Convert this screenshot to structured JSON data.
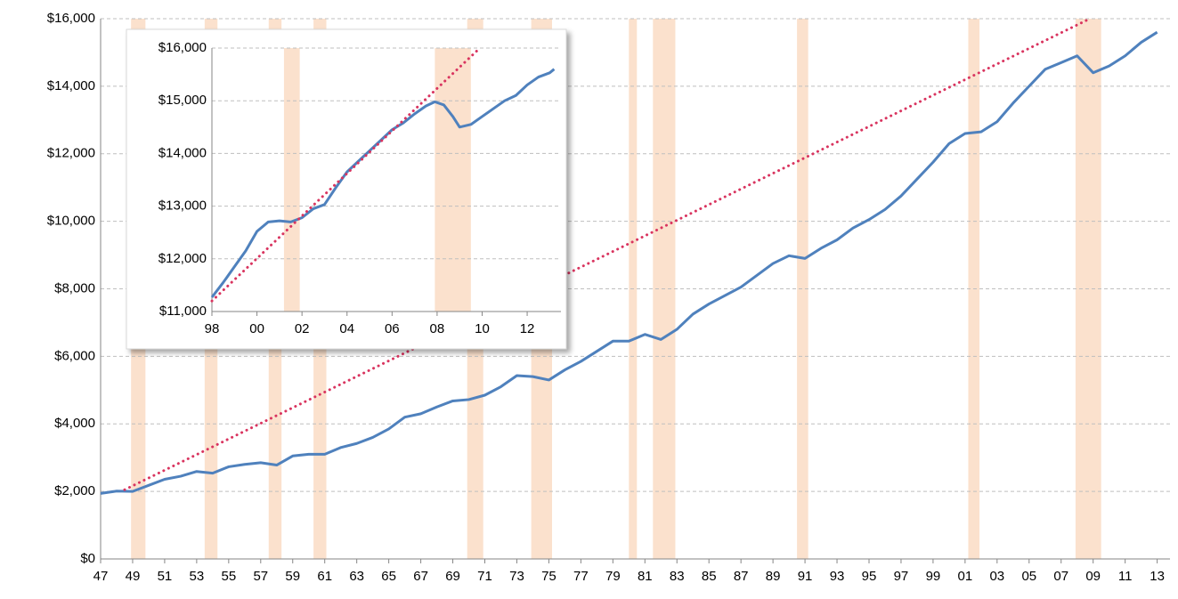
{
  "chart_data": [
    {
      "type": "line",
      "xlim": [
        1947,
        2013.8
      ],
      "ylim": [
        0,
        16000
      ],
      "xticks": [
        {
          "value": 1947,
          "label": "47"
        },
        {
          "value": 1949,
          "label": "49"
        },
        {
          "value": 1951,
          "label": "51"
        },
        {
          "value": 1953,
          "label": "53"
        },
        {
          "value": 1955,
          "label": "55"
        },
        {
          "value": 1957,
          "label": "57"
        },
        {
          "value": 1959,
          "label": "59"
        },
        {
          "value": 1961,
          "label": "61"
        },
        {
          "value": 1963,
          "label": "63"
        },
        {
          "value": 1965,
          "label": "65"
        },
        {
          "value": 1967,
          "label": "67"
        },
        {
          "value": 1969,
          "label": "69"
        },
        {
          "value": 1971,
          "label": "71"
        },
        {
          "value": 1973,
          "label": "73"
        },
        {
          "value": 1975,
          "label": "75"
        },
        {
          "value": 1977,
          "label": "77"
        },
        {
          "value": 1979,
          "label": "79"
        },
        {
          "value": 1981,
          "label": "81"
        },
        {
          "value": 1983,
          "label": "83"
        },
        {
          "value": 1985,
          "label": "85"
        },
        {
          "value": 1987,
          "label": "87"
        },
        {
          "value": 1989,
          "label": "89"
        },
        {
          "value": 1991,
          "label": "91"
        },
        {
          "value": 1993,
          "label": "93"
        },
        {
          "value": 1995,
          "label": "95"
        },
        {
          "value": 1997,
          "label": "97"
        },
        {
          "value": 1999,
          "label": "99"
        },
        {
          "value": 2001,
          "label": "01"
        },
        {
          "value": 2003,
          "label": "03"
        },
        {
          "value": 2005,
          "label": "05"
        },
        {
          "value": 2007,
          "label": "07"
        },
        {
          "value": 2009,
          "label": "09"
        },
        {
          "value": 2011,
          "label": "11"
        },
        {
          "value": 2013,
          "label": "13"
        }
      ],
      "yticks": [
        {
          "value": 0,
          "label": "$0"
        },
        {
          "value": 2000,
          "label": "$2,000"
        },
        {
          "value": 4000,
          "label": "$4,000"
        },
        {
          "value": 6000,
          "label": "$6,000"
        },
        {
          "value": 8000,
          "label": "$8,000"
        },
        {
          "value": 10000,
          "label": "$10,000"
        },
        {
          "value": 12000,
          "label": "$12,000"
        },
        {
          "value": 14000,
          "label": "$14,000"
        },
        {
          "value": 16000,
          "label": "$16,000"
        }
      ],
      "grid": true,
      "recession_color": "#fbe1cd",
      "recessions": [
        [
          1948.9,
          1949.8
        ],
        [
          1953.5,
          1954.3
        ],
        [
          1957.5,
          1958.3
        ],
        [
          1960.3,
          1961.1
        ],
        [
          1969.9,
          1970.9
        ],
        [
          1973.9,
          1975.2
        ],
        [
          1980.0,
          1980.5
        ],
        [
          1981.5,
          1982.9
        ],
        [
          1990.5,
          1991.2
        ],
        [
          2001.2,
          2001.9
        ],
        [
          2007.9,
          2009.5
        ]
      ],
      "series": [
        {
          "color": "#4f81bd",
          "style": "solid",
          "x": [
            1947,
            1948,
            1949,
            1950,
            1951,
            1952,
            1953,
            1954,
            1955,
            1956,
            1957,
            1958,
            1959,
            1960,
            1961,
            1962,
            1963,
            1964,
            1965,
            1966,
            1967,
            1968,
            1969,
            1970,
            1971,
            1972,
            1973,
            1974,
            1975,
            1976,
            1977,
            1978,
            1979,
            1980,
            1981,
            1982,
            1983,
            1984,
            1985,
            1986,
            1987,
            1988,
            1989,
            1990,
            1991,
            1992,
            1993,
            1994,
            1995,
            1996,
            1997,
            1998,
            1999,
            2000,
            2001,
            2002,
            2003,
            2004,
            2005,
            2006,
            2007,
            2008,
            2009,
            2010,
            2011,
            2012,
            2013
          ],
          "values": [
            1940,
            2010,
            2000,
            2180,
            2360,
            2450,
            2590,
            2540,
            2730,
            2800,
            2850,
            2780,
            3050,
            3100,
            3100,
            3300,
            3420,
            3600,
            3850,
            4200,
            4300,
            4500,
            4680,
            4720,
            4850,
            5100,
            5430,
            5400,
            5300,
            5600,
            5850,
            6150,
            6450,
            6450,
            6650,
            6500,
            6800,
            7250,
            7550,
            7800,
            8050,
            8400,
            8750,
            8980,
            8900,
            9200,
            9450,
            9800,
            10050,
            10350,
            10750,
            11250,
            11750,
            12300,
            12600,
            12650,
            12950,
            13500,
            14000,
            14500,
            14700,
            14900,
            14400,
            14600,
            14900,
            15300,
            15600
          ]
        },
        {
          "color": "#d9345f",
          "style": "dotted",
          "x": [
            1948.5,
            2008.8
          ],
          "values": [
            2050,
            16000
          ]
        }
      ]
    },
    {
      "type": "line",
      "xlim": [
        1998,
        2013.5
      ],
      "ylim": [
        11000,
        16000
      ],
      "xticks": [
        {
          "value": 1998,
          "label": "98"
        },
        {
          "value": 2000,
          "label": "00"
        },
        {
          "value": 2002,
          "label": "02"
        },
        {
          "value": 2004,
          "label": "04"
        },
        {
          "value": 2006,
          "label": "06"
        },
        {
          "value": 2008,
          "label": "08"
        },
        {
          "value": 2010,
          "label": "10"
        },
        {
          "value": 2012,
          "label": "12"
        }
      ],
      "yticks": [
        {
          "value": 11000,
          "label": "$11,000"
        },
        {
          "value": 12000,
          "label": "$12,000"
        },
        {
          "value": 13000,
          "label": "$13,000"
        },
        {
          "value": 14000,
          "label": "$14,000"
        },
        {
          "value": 15000,
          "label": "$15,000"
        },
        {
          "value": 16000,
          "label": "$16,000"
        }
      ],
      "grid": true,
      "recession_color": "#fbe1cd",
      "recessions": [
        [
          2001.2,
          2001.9
        ],
        [
          2007.9,
          2009.5
        ]
      ],
      "series": [
        {
          "color": "#4f81bd",
          "style": "solid",
          "x": [
            1998,
            1998.5,
            1999,
            1999.5,
            2000,
            2000.5,
            2001,
            2001.5,
            2002,
            2002.5,
            2003,
            2003.5,
            2004,
            2004.5,
            2005,
            2005.5,
            2006,
            2006.5,
            2007,
            2007.5,
            2007.9,
            2008.3,
            2008.7,
            2009,
            2009.5,
            2010,
            2010.5,
            2011,
            2011.5,
            2012,
            2012.5,
            2013,
            2013.2
          ],
          "values": [
            11270,
            11550,
            11850,
            12150,
            12520,
            12700,
            12720,
            12700,
            12780,
            12950,
            13030,
            13350,
            13650,
            13850,
            14050,
            14250,
            14450,
            14580,
            14750,
            14900,
            14980,
            14920,
            14700,
            14500,
            14550,
            14700,
            14850,
            15000,
            15100,
            15300,
            15450,
            15530,
            15600
          ]
        },
        {
          "color": "#d9345f",
          "style": "dotted",
          "x": [
            1998,
            2009.9
          ],
          "values": [
            11200,
            16000
          ]
        }
      ]
    }
  ]
}
